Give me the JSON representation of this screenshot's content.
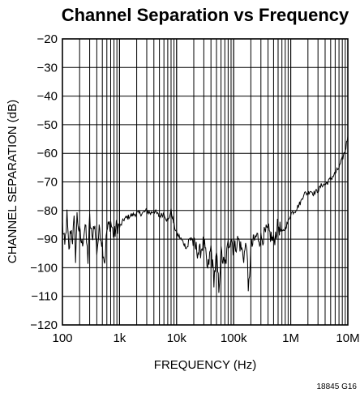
{
  "chart_data": {
    "type": "line",
    "title": "Channel Separation vs Frequency",
    "xlabel": "FREQUENCY (Hz)",
    "ylabel": "CHANNEL SEPARATION (dB)",
    "x_scale": "log",
    "xlim": [
      100,
      10000000
    ],
    "ylim": [
      -120,
      -20
    ],
    "grid": true,
    "x_tick_values": [
      100,
      1000,
      10000,
      100000,
      1000000,
      10000000
    ],
    "x_tick_labels": [
      "100",
      "1k",
      "10k",
      "100k",
      "1M",
      "10M"
    ],
    "y_tick_values": [
      -20,
      -30,
      -40,
      -50,
      -60,
      -70,
      -80,
      -90,
      -100,
      -110,
      -120
    ],
    "y_tick_labels": [
      "−20",
      "−30",
      "−40",
      "−50",
      "−60",
      "−70",
      "−80",
      "−90",
      "−100",
      "−110",
      "−120"
    ],
    "series": [
      {
        "x": [
          100,
          110,
          120,
          130,
          140,
          150,
          160,
          170,
          180,
          200,
          220,
          250,
          280,
          300,
          330,
          360,
          400,
          450,
          500,
          550,
          600,
          700,
          800,
          900,
          1000,
          1200,
          1500,
          2000,
          2500,
          3000,
          3500,
          4000,
          5000,
          6000,
          7000,
          8000,
          9000,
          10000,
          12000,
          15000,
          18000,
          20000,
          25000,
          30000,
          35000,
          40000,
          45000,
          50000,
          55000,
          60000,
          70000,
          80000,
          90000,
          100000,
          120000,
          150000,
          170000,
          180000,
          200000,
          250000,
          300000,
          400000,
          500000,
          600000,
          700000,
          800000,
          900000,
          1000000,
          1200000,
          1500000,
          1700000,
          2000000,
          2200000,
          2500000,
          3000000,
          3500000,
          4000000,
          5000000,
          6000000,
          7000000,
          8000000,
          9000000,
          10000000
        ],
        "y": [
          -85,
          -93,
          -82,
          -95,
          -86,
          -90,
          -84,
          -96,
          -82,
          -88,
          -92,
          -85,
          -97,
          -83,
          -90,
          -84,
          -94,
          -86,
          -92,
          -98,
          -87,
          -84,
          -89,
          -85,
          -86,
          -83,
          -82,
          -81,
          -81,
          -80,
          -81,
          -80,
          -82,
          -81,
          -84,
          -80,
          -85,
          -88,
          -90,
          -93,
          -89,
          -92,
          -95,
          -91,
          -101,
          -93,
          -104,
          -96,
          -107,
          -95,
          -100,
          -92,
          -89,
          -94,
          -90,
          -96,
          -91,
          -110,
          -93,
          -89,
          -90,
          -87,
          -91,
          -85,
          -88,
          -86,
          -84,
          -81,
          -80,
          -77,
          -74,
          -74,
          -73,
          -74,
          -73,
          -71,
          -71,
          -69,
          -67,
          -65,
          -62,
          -59,
          -54
        ]
      }
    ],
    "footnote": "18845 G16"
  }
}
